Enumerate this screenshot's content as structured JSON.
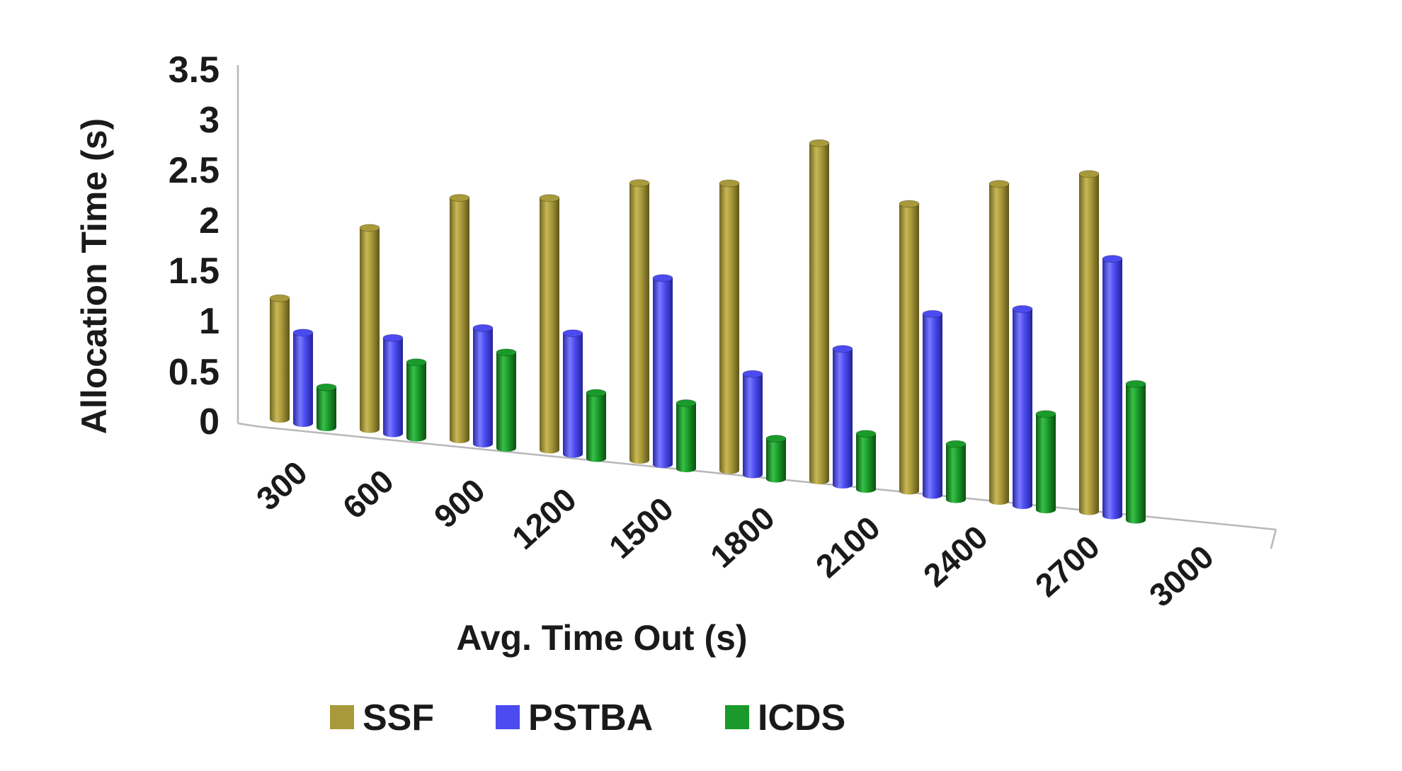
{
  "chart_data": {
    "type": "bar",
    "title": "",
    "xlabel": "Avg. Time Out (s)",
    "ylabel": "Allocation Time (s)",
    "ylim": [
      0,
      3.5
    ],
    "yticks": [
      "0",
      "0.5",
      "1",
      "1.5",
      "2",
      "2.5",
      "3",
      "3.5"
    ],
    "categories": [
      "300",
      "600",
      "900",
      "1200",
      "1500",
      "1800",
      "2100",
      "2400",
      "2700",
      "3000"
    ],
    "series": [
      {
        "name": "SSF",
        "color": "#a89a3a",
        "values": [
          1.2,
          2.0,
          2.4,
          2.5,
          2.75,
          2.85,
          3.35,
          2.85,
          3.15,
          3.35
        ]
      },
      {
        "name": "PSTBA",
        "color": "#4b4bf0",
        "values": [
          0.9,
          0.95,
          1.15,
          1.2,
          1.85,
          1.0,
          1.35,
          1.8,
          1.95,
          2.55
        ]
      },
      {
        "name": "ICDS",
        "color": "#1a9a2a",
        "values": [
          0.4,
          0.75,
          0.95,
          0.65,
          0.65,
          0.4,
          0.55,
          0.55,
          0.95,
          1.35
        ]
      }
    ],
    "legend": "bottom"
  }
}
